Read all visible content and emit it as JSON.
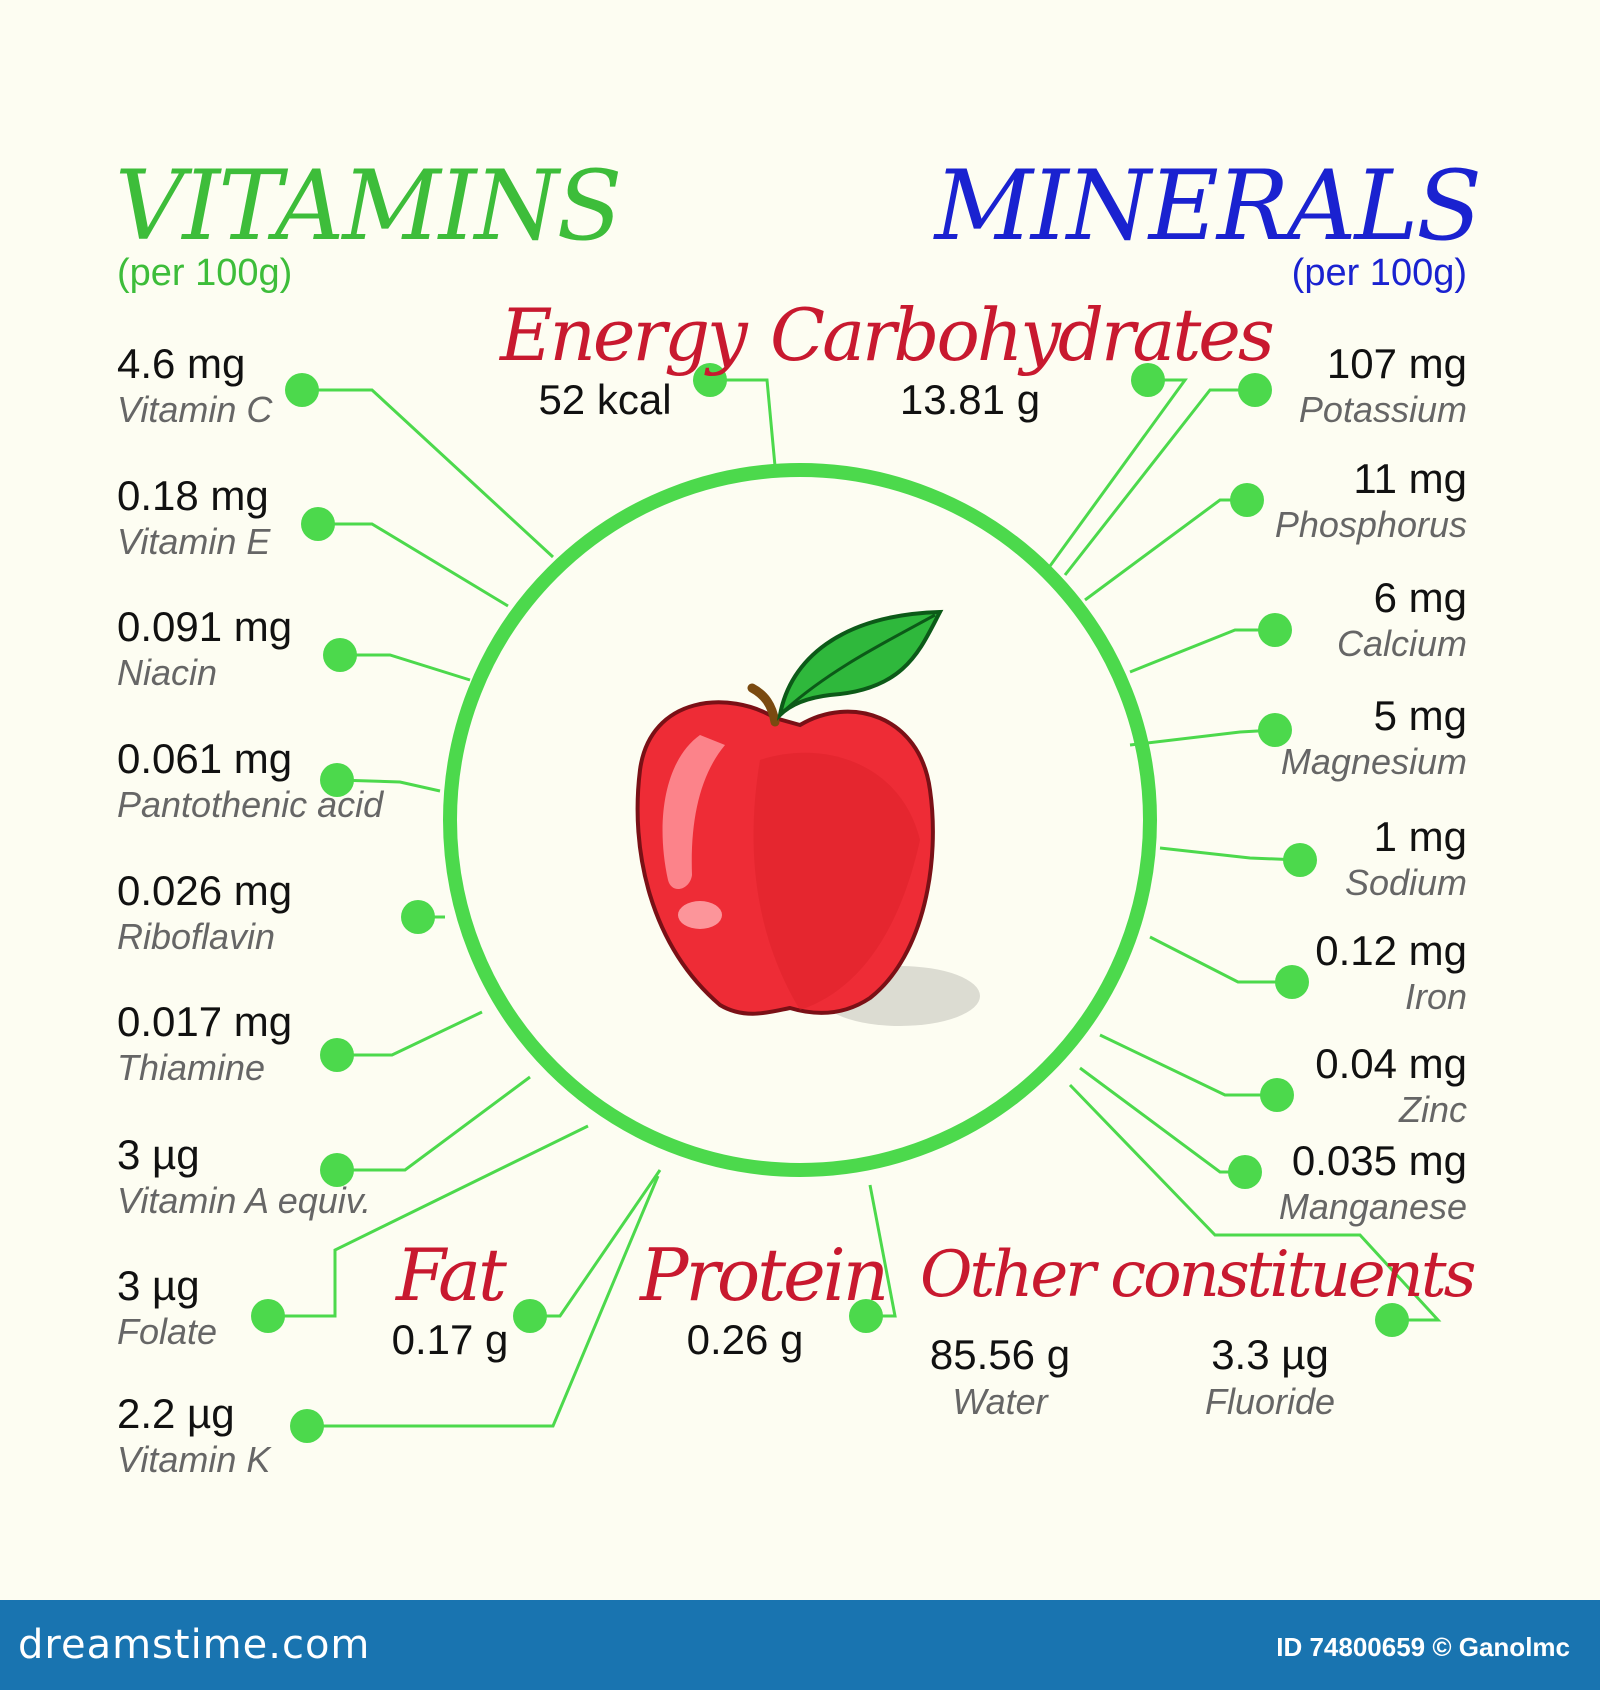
{
  "vitamins": {
    "title": "VITAMINS",
    "subtitle": "(per 100g)",
    "items": [
      {
        "value": "4.6 mg",
        "name": "Vitamin C"
      },
      {
        "value": "0.18 mg",
        "name": "Vitamin E"
      },
      {
        "value": "0.091 mg",
        "name": "Niacin"
      },
      {
        "value": "0.061 mg",
        "name": "Pantothenic acid"
      },
      {
        "value": "0.026 mg",
        "name": "Riboflavin"
      },
      {
        "value": "0.017 mg",
        "name": "Thiamine"
      },
      {
        "value": "3 µg",
        "name": "Vitamin A equiv."
      },
      {
        "value": "3 µg",
        "name": "Folate"
      },
      {
        "value": "2.2 µg",
        "name": "Vitamin K"
      }
    ]
  },
  "minerals": {
    "title": "MINERALS",
    "subtitle": "(per 100g)",
    "items": [
      {
        "value": "107 mg",
        "name": "Potassium"
      },
      {
        "value": "11 mg",
        "name": "Phosphorus"
      },
      {
        "value": "6 mg",
        "name": "Calcium"
      },
      {
        "value": "5 mg",
        "name": "Magnesium"
      },
      {
        "value": "1 mg",
        "name": "Sodium"
      },
      {
        "value": "0.12 mg",
        "name": "Iron"
      },
      {
        "value": "0.04 mg",
        "name": "Zinc"
      },
      {
        "value": "0.035 mg",
        "name": "Manganese"
      }
    ]
  },
  "macros": {
    "energy": {
      "title": "Energy",
      "value": "52 kcal"
    },
    "carbohydrates": {
      "title": "Carbohydrates",
      "value": "13.81 g"
    },
    "fat": {
      "title": "Fat",
      "value": "0.17 g"
    },
    "protein": {
      "title": "Protein",
      "value": "0.26 g"
    }
  },
  "other": {
    "title": "Other constituents",
    "items": [
      {
        "value": "85.56 g",
        "name": "Water"
      },
      {
        "value": "3.3 µg",
        "name": "Fluoride"
      }
    ]
  },
  "footer": {
    "site": "dreamstime.com",
    "credit": "ID 74800659 © Ganolmc"
  },
  "colors": {
    "vitamins": "#3dbd3a",
    "minerals": "#1a22d0",
    "macro_title": "#c8192f",
    "connector": "#4cd94c",
    "footer": "#1974b0"
  }
}
